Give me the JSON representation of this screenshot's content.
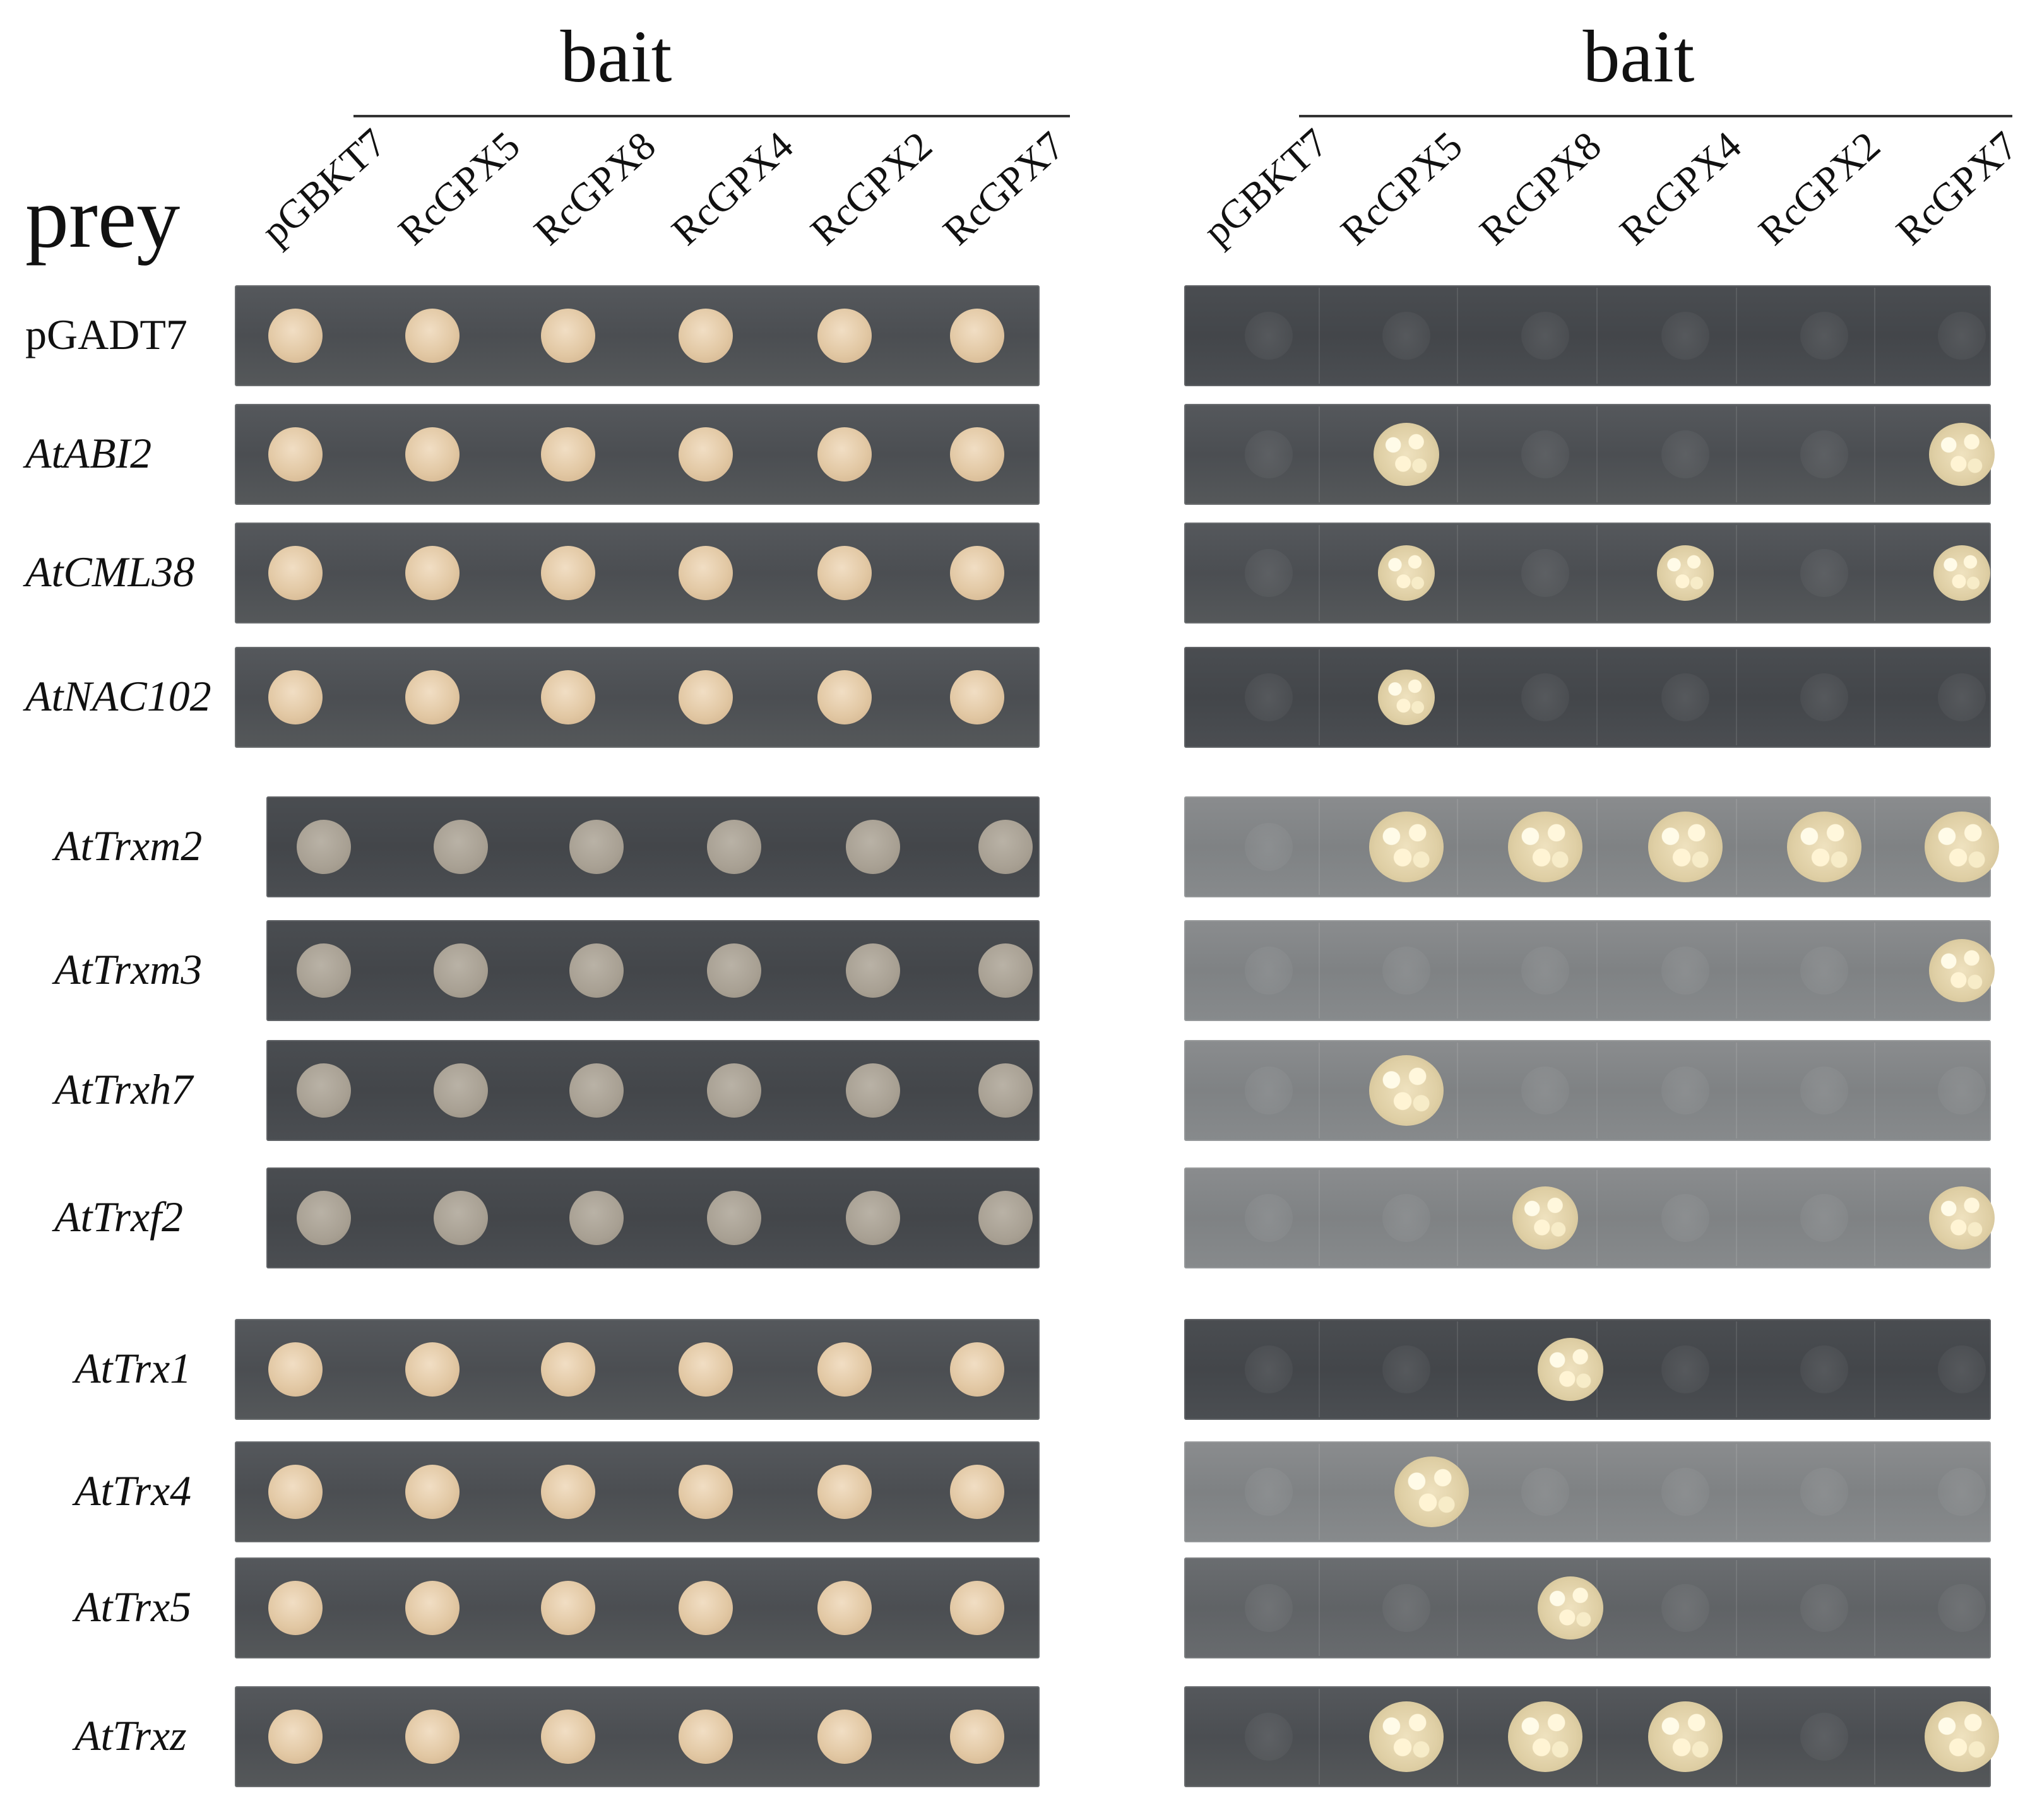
{
  "figure": {
    "left_bait_title": "bait",
    "right_bait_title": "bait",
    "prey_title": "prey",
    "bait_columns": [
      "pGBKT7",
      "RcGPX5",
      "RcGPX8",
      "RcGPX4",
      "RcGPX2",
      "RcGPX7"
    ],
    "rows": [
      {
        "label": "pGADT7",
        "italic": false,
        "right_growth": [
          0,
          0,
          0,
          0,
          0,
          0
        ]
      },
      {
        "label": "AtABI2",
        "italic": true,
        "right_growth": [
          0,
          1,
          0,
          0,
          0,
          1
        ]
      },
      {
        "label": "AtCML38",
        "italic": true,
        "right_growth": [
          0,
          1,
          0,
          1,
          0,
          1
        ]
      },
      {
        "label": "AtNAC102",
        "italic": true,
        "right_growth": [
          0,
          1,
          0,
          0,
          0,
          0
        ]
      },
      {
        "label": "AtTrxm2",
        "italic": true,
        "right_growth": [
          0,
          1,
          1,
          1,
          1,
          1
        ]
      },
      {
        "label": "AtTrxm3",
        "italic": true,
        "right_growth": [
          0,
          0,
          0,
          0,
          0,
          1
        ]
      },
      {
        "label": "AtTrxh7",
        "italic": true,
        "right_growth": [
          0,
          1,
          0,
          0,
          0,
          0
        ]
      },
      {
        "label": "AtTrxf2",
        "italic": true,
        "right_growth": [
          0,
          0,
          1,
          0,
          0,
          1
        ]
      },
      {
        "label": "AtTrx1",
        "italic": true,
        "right_growth": [
          0,
          0,
          1,
          0,
          0,
          0
        ]
      },
      {
        "label": "AtTrx4",
        "italic": true,
        "right_growth": [
          0,
          1,
          0,
          0,
          0,
          0
        ]
      },
      {
        "label": "AtTrx5",
        "italic": true,
        "right_growth": [
          0,
          0,
          1,
          0,
          0,
          0
        ]
      },
      {
        "label": "AtTrxz",
        "italic": true,
        "right_growth": [
          0,
          1,
          1,
          1,
          0,
          1
        ]
      }
    ]
  }
}
